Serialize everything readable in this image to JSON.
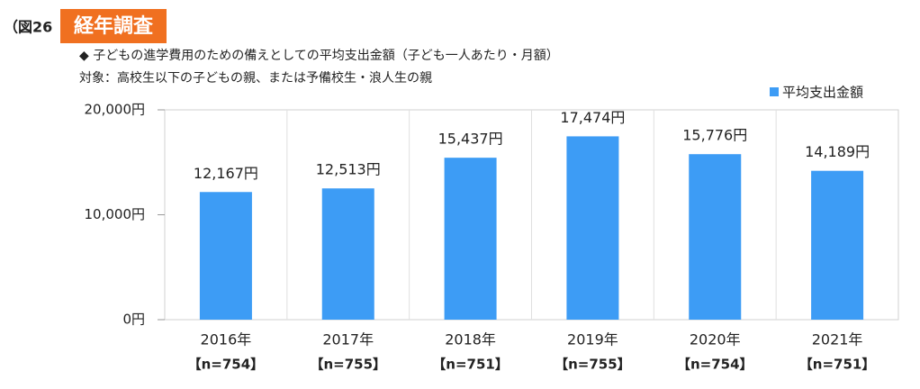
{
  "chart_data": {
    "type": "bar",
    "figure_label": "（図26",
    "title": "経年調査",
    "subtitle": "◆ 子どもの進学費用のための備えとしての平均支出金額（子ども一人あたり・月額）",
    "note": "対象：高校生以下の子どもの親、または予備校生・浪人生の親",
    "categories": [
      "2016年",
      "2017年",
      "2018年",
      "2019年",
      "2020年",
      "2021年"
    ],
    "sample_labels": [
      "【n=754】",
      "【n=755】",
      "【n=751】",
      "【n=755】",
      "【n=754】",
      "【n=751】"
    ],
    "series": [
      {
        "name": "平均支出金額",
        "color": "#3d9cf5",
        "values": [
          12167,
          12513,
          15437,
          17474,
          15776,
          14189
        ],
        "value_labels": [
          "12,167円",
          "12,513円",
          "15,437円",
          "17,474円",
          "15,776円",
          "14,189円"
        ]
      }
    ],
    "ylim": [
      0,
      20000
    ],
    "yticks": [
      {
        "value": 0,
        "label": "0円"
      },
      {
        "value": 10000,
        "label": "10,000円"
      },
      {
        "value": 20000,
        "label": "20,000円"
      }
    ],
    "legend": "top-right",
    "grid": true
  }
}
